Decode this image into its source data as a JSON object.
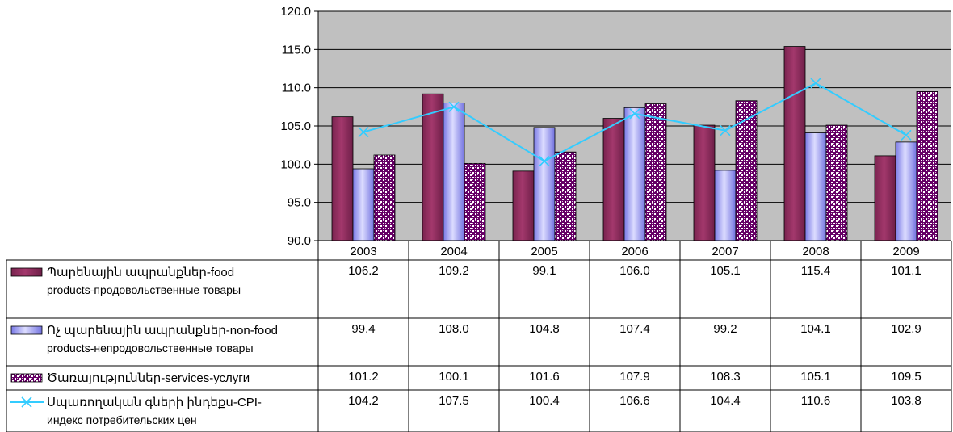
{
  "chart_data": {
    "type": "bar",
    "categories": [
      "2003",
      "2004",
      "2005",
      "2006",
      "2007",
      "2008",
      "2009"
    ],
    "ylim": [
      90,
      120
    ],
    "yticks": [
      90,
      95,
      100,
      105,
      110,
      115,
      120
    ],
    "yticks_labels": [
      "90.0",
      "95.0",
      "100.0",
      "105.0",
      "110.0",
      "115.0",
      "120.0"
    ],
    "series": [
      {
        "type": "bar",
        "name_line1": "Պարենային ապրանքներ-food",
        "name_line2": "products-продовольственные товары",
        "values": [
          106.2,
          109.2,
          99.1,
          106.0,
          105.1,
          115.4,
          101.1
        ],
        "values_labels": [
          "106.2",
          "109.2",
          "99.1",
          "106.0",
          "105.1",
          "115.4",
          "101.1"
        ],
        "color": "#993366"
      },
      {
        "type": "bar",
        "name_line1": "Ոչ պարենային ապրանքներ-non-food",
        "name_line2": "products-непродовольственные товары",
        "values": [
          99.4,
          108.0,
          104.8,
          107.4,
          99.2,
          104.1,
          102.9
        ],
        "values_labels": [
          "99.4",
          "108.0",
          "104.8",
          "107.4",
          "99.2",
          "104.1",
          "102.9"
        ],
        "color": "#9999ff"
      },
      {
        "type": "bar",
        "name_line1": "Ծառայություններ-services-услуги",
        "name_line2": "",
        "values": [
          101.2,
          100.1,
          101.6,
          107.9,
          108.3,
          105.1,
          109.5
        ],
        "values_labels": [
          "101.2",
          "100.1",
          "101.6",
          "107.9",
          "108.3",
          "105.1",
          "109.5"
        ],
        "color": "#660066"
      },
      {
        "type": "line",
        "name_line1": "Սպառողական գների ինդեքս-CPI-",
        "name_line2": "индекс потребительских цен",
        "values": [
          104.2,
          107.5,
          100.4,
          106.6,
          104.4,
          110.6,
          103.8
        ],
        "values_labels": [
          "104.2",
          "107.5",
          "100.4",
          "106.6",
          "104.4",
          "110.6",
          "103.8"
        ],
        "color": "#33ccff"
      }
    ],
    "grid": true,
    "legend": "data-table-left"
  }
}
